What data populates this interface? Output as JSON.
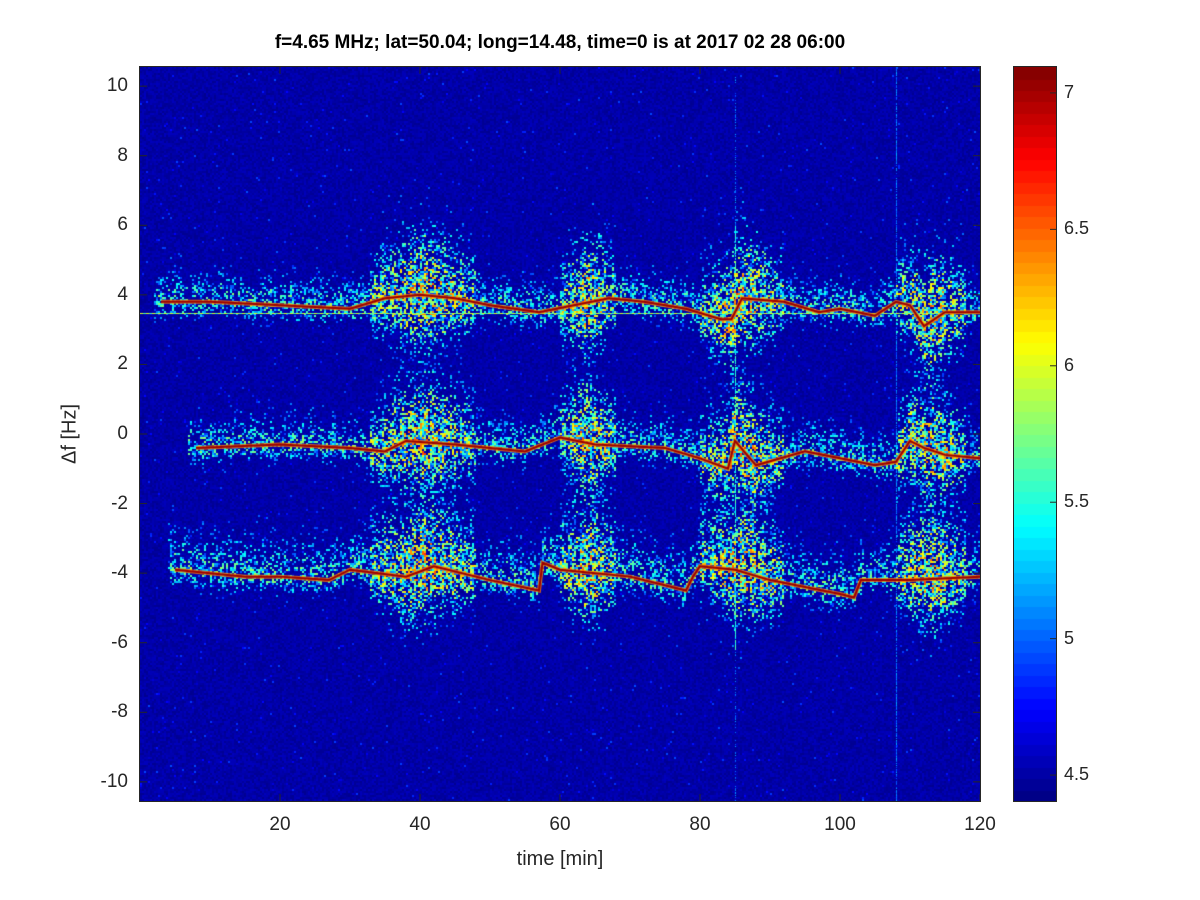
{
  "chart_data": {
    "type": "heatmap",
    "title": "f=4.65 MHz;  lat=50.04; long=14.48, time=0 is at 2017 02 28 06:00",
    "xlabel": "time [min]",
    "ylabel": "Δf [Hz]",
    "xlim": [
      0,
      120
    ],
    "ylim": [
      -10.55,
      10.55
    ],
    "xticks": [
      "20",
      "40",
      "60",
      "80",
      "100",
      "120"
    ],
    "yticks": [
      "10",
      "8",
      "6",
      "4",
      "2",
      "0",
      "-2",
      "-4",
      "-6",
      "-8",
      "-10"
    ],
    "colormap": "jet",
    "clim": [
      4.405,
      7.095
    ],
    "colorbar_ticks": [
      "7",
      "6.5",
      "6",
      "5.5",
      "5",
      "4.5"
    ],
    "background_value": 4.45,
    "grid": false,
    "constant_line_hz": 3.48,
    "vertical_streaks_min": [
      85,
      108
    ],
    "ridges": [
      {
        "x": [
          3,
          10,
          20,
          30,
          35,
          40,
          45,
          50,
          57,
          62,
          67,
          72,
          78,
          83,
          84.5,
          86,
          92,
          97,
          100,
          105,
          108,
          110,
          112,
          115,
          120
        ],
        "y": [
          3.8,
          3.8,
          3.7,
          3.6,
          3.9,
          4.0,
          3.9,
          3.7,
          3.5,
          3.7,
          3.9,
          3.8,
          3.6,
          3.3,
          3.3,
          3.9,
          3.8,
          3.5,
          3.6,
          3.4,
          3.8,
          3.7,
          3.1,
          3.5,
          3.5
        ]
      },
      {
        "x": [
          8,
          20,
          30,
          35,
          38,
          45,
          55,
          60,
          65,
          75,
          80,
          84,
          85,
          88,
          95,
          100,
          105,
          108,
          110,
          112,
          115,
          120
        ],
        "y": [
          -0.4,
          -0.3,
          -0.4,
          -0.5,
          -0.2,
          -0.3,
          -0.5,
          -0.1,
          -0.3,
          -0.4,
          -0.7,
          -1.0,
          -0.2,
          -0.9,
          -0.5,
          -0.7,
          -0.9,
          -0.8,
          -0.2,
          -0.4,
          -0.6,
          -0.7
        ]
      },
      {
        "x": [
          5,
          15,
          20,
          27,
          30,
          38,
          42,
          50,
          57,
          57.5,
          60,
          70,
          78,
          79,
          80,
          85,
          90,
          100,
          102,
          103,
          110,
          120
        ],
        "y": [
          -3.9,
          -4.1,
          -4.1,
          -4.2,
          -3.9,
          -4.1,
          -3.8,
          -4.2,
          -4.5,
          -3.7,
          -3.9,
          -4.1,
          -4.5,
          -4.1,
          -3.8,
          -3.9,
          -4.2,
          -4.6,
          -4.7,
          -4.2,
          -4.2,
          -4.1
        ]
      }
    ],
    "activity_regions_min": [
      [
        33,
        48
      ],
      [
        60,
        68
      ],
      [
        80,
        92
      ],
      [
        108,
        118
      ]
    ]
  }
}
